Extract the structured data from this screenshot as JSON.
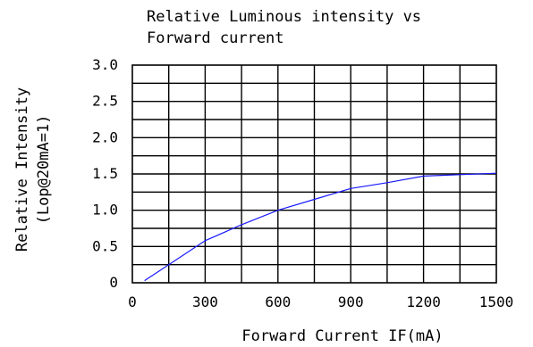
{
  "chart_data": {
    "type": "line",
    "title_lines": [
      "Relative Luminous intensity vs",
      "Forward current"
    ],
    "xlabel": "Forward Current IF(mA)",
    "ylabel_lines": [
      "Relative Intensity",
      "(Lop@20mA=1)"
    ],
    "xlim": [
      0,
      1500
    ],
    "ylim": [
      0,
      3.0
    ],
    "x_ticks": [
      0,
      300,
      600,
      900,
      1200,
      1500
    ],
    "x_tick_labels": [
      "0",
      "300",
      "600",
      "900",
      "1200",
      "1500"
    ],
    "y_ticks": [
      0,
      0.5,
      1.0,
      1.5,
      2.0,
      2.5,
      3.0
    ],
    "y_tick_labels": [
      "0",
      "0.5",
      "1.0",
      "1.5",
      "2.0",
      "2.5",
      "3.0"
    ],
    "grid": true,
    "series": [
      {
        "color": "#1a1aff",
        "x": [
          50,
          150,
          300,
          450,
          600,
          750,
          900,
          1050,
          1200,
          1350,
          1500
        ],
        "y": [
          0.03,
          0.25,
          0.58,
          0.8,
          1.0,
          1.15,
          1.3,
          1.38,
          1.47,
          1.49,
          1.51
        ]
      }
    ]
  }
}
